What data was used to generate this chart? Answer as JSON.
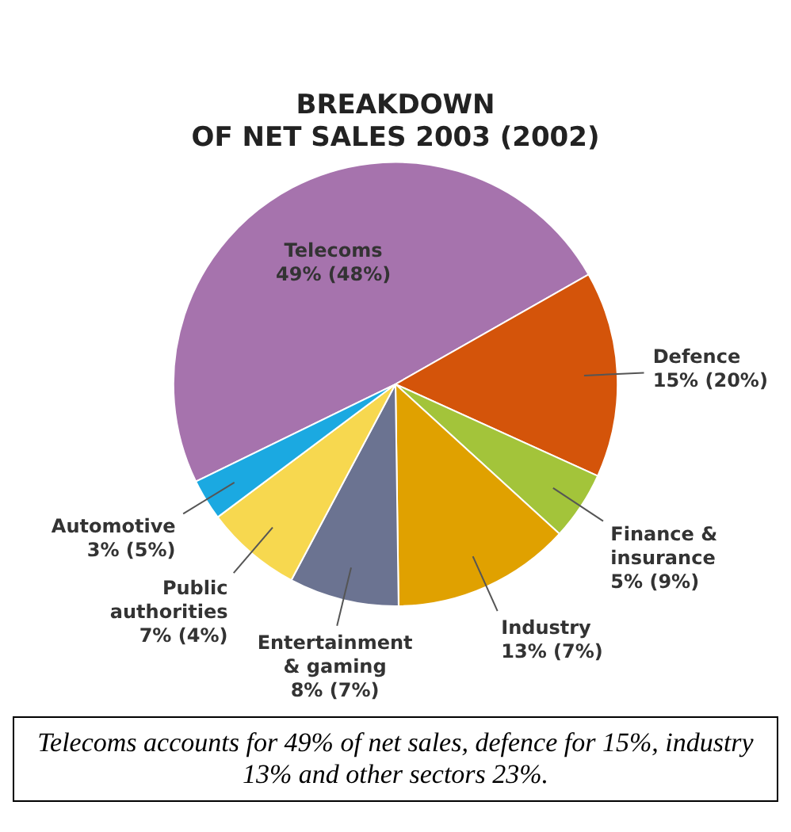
{
  "chart_data": {
    "type": "pie",
    "title": "BREAKDOWN\nOF NET SALES 2003 (2002)",
    "categories": [
      "Telecoms",
      "Defence",
      "Finance & insurance",
      "Industry",
      "Entertainment & gaming",
      "Public authorities",
      "Automotive"
    ],
    "values": [
      49,
      15,
      5,
      13,
      8,
      7,
      3
    ],
    "value_labels": [
      "49% (48%)",
      "15% (20%)",
      "5% (9%)",
      "13% (7%)",
      "8% (7%)",
      "7% (4%)",
      "3% (5%)"
    ],
    "colors": [
      "#a673ad",
      "#d4540a",
      "#a3c43a",
      "#e0a100",
      "#6b7391",
      "#f7d84f",
      "#1ba9e1"
    ],
    "legend": false,
    "annotations": [
      "Telecoms accounts for 49% of net sales, defence for 15%, industry 13% and other sectors 23%."
    ]
  }
}
